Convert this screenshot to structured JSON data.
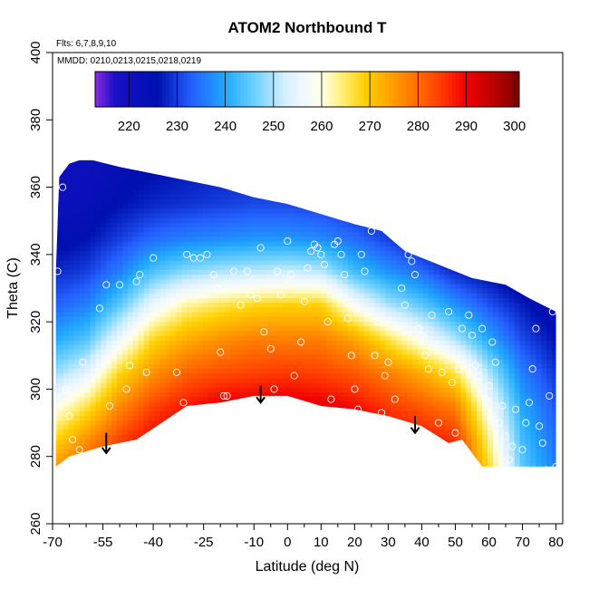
{
  "chart_data": {
    "type": "heatmap",
    "title": "ATOM2 Northbound T",
    "annotations": [
      "Flts: 6,7,8,9,10",
      "MMDD: 0210,0213,0215,0218,0219"
    ],
    "xlabel": "Latitude (deg N)",
    "ylabel": "Theta (C)",
    "xlim": [
      -70,
      82
    ],
    "ylim": [
      260,
      400
    ],
    "x_major_ticks": [
      -70,
      -55,
      -40,
      -25,
      -10,
      0,
      10,
      20,
      30,
      40,
      50,
      60,
      70,
      80
    ],
    "x_minor_ticks": [
      -65,
      -60,
      -50,
      -45,
      -35,
      -30,
      -20,
      -15,
      -5,
      5,
      15,
      25,
      35,
      45,
      55,
      65,
      75
    ],
    "y_ticks": [
      260,
      280,
      300,
      320,
      340,
      360,
      380,
      400
    ],
    "colorbar": {
      "range": [
        213,
        301
      ],
      "tick_values": [
        220,
        230,
        240,
        250,
        260,
        270,
        280,
        290,
        300
      ],
      "divider_values": [
        220,
        230,
        240,
        250,
        260,
        270,
        280,
        290,
        300
      ],
      "colors": [
        [
          213,
          "#8a2be2"
        ],
        [
          217,
          "#1a10c8"
        ],
        [
          226,
          "#0010b0"
        ],
        [
          233,
          "#2460ff"
        ],
        [
          240,
          "#20a8ff"
        ],
        [
          246,
          "#6cd0ff"
        ],
        [
          252,
          "#d0eeff"
        ],
        [
          256,
          "#f0f8ff"
        ],
        [
          260,
          "#ffffe8"
        ],
        [
          264,
          "#fff080"
        ],
        [
          269,
          "#ffd000"
        ],
        [
          274,
          "#ffa400"
        ],
        [
          280,
          "#ff6c00"
        ],
        [
          285,
          "#ff3800"
        ],
        [
          290,
          "#f00000"
        ],
        [
          296,
          "#b80000"
        ],
        [
          301,
          "#7c0000"
        ]
      ]
    },
    "data_envelope": {
      "upper": [
        [
          -69,
          335
        ],
        [
          -68,
          363
        ],
        [
          -65,
          367
        ],
        [
          -62,
          368
        ],
        [
          -58,
          368
        ],
        [
          -50,
          366
        ],
        [
          -35,
          363
        ],
        [
          -20,
          360
        ],
        [
          -10,
          357
        ],
        [
          0,
          355
        ],
        [
          10,
          352
        ],
        [
          20,
          349
        ],
        [
          28,
          347
        ],
        [
          35,
          341
        ],
        [
          45,
          337
        ],
        [
          55,
          333
        ],
        [
          65,
          331
        ],
        [
          72,
          327
        ],
        [
          80,
          323
        ]
      ],
      "lower": [
        [
          80,
          277
        ],
        [
          58,
          277
        ],
        [
          52,
          285
        ],
        [
          48,
          284
        ],
        [
          40,
          289
        ],
        [
          30,
          292
        ],
        [
          20,
          294
        ],
        [
          10,
          295
        ],
        [
          0,
          298
        ],
        [
          -10,
          298
        ],
        [
          -20,
          296
        ],
        [
          -30,
          295
        ],
        [
          -45,
          285
        ],
        [
          -55,
          283
        ],
        [
          -65,
          280
        ],
        [
          -69,
          277
        ]
      ]
    },
    "temperature_field": {
      "latitudes": [
        -70,
        -60,
        -50,
        -40,
        -30,
        -20,
        -10,
        0,
        10,
        20,
        30,
        40,
        50,
        60,
        70,
        80
      ],
      "theta_levels": [
        276,
        285,
        295,
        305,
        315,
        325,
        335,
        345,
        355,
        368
      ],
      "values": [
        [
          276,
          268,
          258,
          248,
          240,
          233,
          228,
          224,
          222,
          221
        ],
        [
          282,
          276,
          266,
          254,
          244,
          236,
          230,
          226,
          223,
          222
        ],
        [
          288,
          284,
          277,
          268,
          256,
          245,
          236,
          230,
          226,
          224
        ],
        [
          292,
          290,
          284,
          276,
          268,
          256,
          244,
          234,
          228,
          225
        ],
        [
          294,
          293,
          288,
          281,
          273,
          263,
          248,
          236,
          229,
          226
        ],
        [
          296,
          295,
          291,
          283,
          276,
          266,
          250,
          237,
          230,
          227
        ],
        [
          297,
          296,
          292,
          284,
          278,
          268,
          251,
          238,
          231,
          227
        ],
        [
          297,
          296,
          292,
          285,
          278,
          269,
          252,
          238,
          231,
          227
        ],
        [
          296,
          295,
          291,
          284,
          278,
          269,
          251,
          237,
          230,
          226
        ],
        [
          294,
          293,
          289,
          282,
          274,
          258,
          243,
          234,
          228,
          225
        ],
        [
          292,
          290,
          285,
          278,
          266,
          250,
          238,
          230,
          226,
          224
        ],
        [
          290,
          288,
          282,
          273,
          258,
          245,
          234,
          225,
          223,
          222
        ],
        [
          288,
          286,
          278,
          266,
          250,
          238,
          228,
          220,
          220,
          220
        ],
        [
          268,
          264,
          258,
          250,
          240,
          232,
          225,
          219,
          219,
          219
        ],
        [
          245,
          243,
          240,
          236,
          231,
          227,
          222,
          218,
          218,
          218
        ],
        [
          236,
          234,
          232,
          229,
          226,
          223,
          220,
          218,
          218,
          218
        ]
      ]
    },
    "arrows": [
      {
        "x": -54,
        "y_top": 287,
        "y_bottom": 281
      },
      {
        "x": -8,
        "y_top": 301,
        "y_bottom": 296
      },
      {
        "x": 38,
        "y_top": 292,
        "y_bottom": 287
      }
    ],
    "observations": [
      [
        -68.5,
        335
      ],
      [
        -67,
        360
      ],
      [
        -66,
        300
      ],
      [
        -65,
        292
      ],
      [
        -64,
        285
      ],
      [
        -62,
        282
      ],
      [
        -61,
        308
      ],
      [
        -56,
        324
      ],
      [
        -54,
        331
      ],
      [
        -53,
        295
      ],
      [
        -50,
        331
      ],
      [
        -48,
        300
      ],
      [
        -47,
        307
      ],
      [
        -45,
        332
      ],
      [
        -44,
        334
      ],
      [
        -43,
        285
      ],
      [
        -42,
        305
      ],
      [
        -40,
        339
      ],
      [
        -33,
        305
      ],
      [
        -31,
        296
      ],
      [
        -30,
        340
      ],
      [
        -28,
        339
      ],
      [
        -26,
        339
      ],
      [
        -24,
        340
      ],
      [
        -22,
        334
      ],
      [
        -21,
        330
      ],
      [
        -20,
        311
      ],
      [
        -19,
        298
      ],
      [
        -18,
        298
      ],
      [
        -16,
        335
      ],
      [
        -14,
        325
      ],
      [
        -12,
        335
      ],
      [
        -11,
        328
      ],
      [
        -9,
        327
      ],
      [
        -8,
        342
      ],
      [
        -7,
        317
      ],
      [
        -5,
        312
      ],
      [
        -4,
        300
      ],
      [
        -3,
        335
      ],
      [
        -2,
        328
      ],
      [
        0,
        344
      ],
      [
        1,
        334
      ],
      [
        2,
        304
      ],
      [
        4,
        314
      ],
      [
        5,
        326
      ],
      [
        6,
        336
      ],
      [
        7,
        341
      ],
      [
        8,
        343
      ],
      [
        9,
        342
      ],
      [
        10,
        340
      ],
      [
        11,
        337
      ],
      [
        12,
        320
      ],
      [
        13,
        297
      ],
      [
        14,
        343
      ],
      [
        15,
        344
      ],
      [
        16,
        340
      ],
      [
        17,
        334
      ],
      [
        18,
        321
      ],
      [
        19,
        310
      ],
      [
        20,
        300
      ],
      [
        21,
        294
      ],
      [
        22,
        340
      ],
      [
        23,
        335
      ],
      [
        25,
        347
      ],
      [
        26,
        310
      ],
      [
        27,
        320
      ],
      [
        28,
        293
      ],
      [
        29,
        304
      ],
      [
        30,
        308
      ],
      [
        32,
        297
      ],
      [
        34,
        330
      ],
      [
        35,
        325
      ],
      [
        36,
        340
      ],
      [
        37,
        338
      ],
      [
        38,
        334
      ],
      [
        39,
        318
      ],
      [
        40,
        316
      ],
      [
        41,
        310
      ],
      [
        42,
        306
      ],
      [
        43,
        322
      ],
      [
        45,
        290
      ],
      [
        46,
        305
      ],
      [
        48,
        323
      ],
      [
        49,
        302
      ],
      [
        50,
        287
      ],
      [
        51,
        306
      ],
      [
        52,
        318
      ],
      [
        54,
        322
      ],
      [
        55,
        316
      ],
      [
        56,
        307
      ],
      [
        57,
        304
      ],
      [
        58,
        318
      ],
      [
        59,
        297
      ],
      [
        60,
        301
      ],
      [
        61,
        314
      ],
      [
        62,
        308
      ],
      [
        63,
        290
      ],
      [
        64,
        295
      ],
      [
        65,
        286
      ],
      [
        66,
        279
      ],
      [
        67,
        283
      ],
      [
        68,
        294
      ],
      [
        70,
        282
      ],
      [
        71,
        290
      ],
      [
        72,
        296
      ],
      [
        73,
        306
      ],
      [
        74,
        318
      ],
      [
        75,
        289
      ],
      [
        76,
        284
      ],
      [
        77,
        276
      ],
      [
        78,
        298
      ],
      [
        79,
        323
      ],
      [
        80,
        277
      ]
    ]
  }
}
